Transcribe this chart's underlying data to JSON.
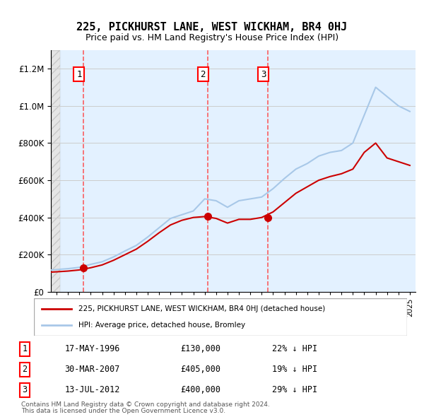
{
  "title": "225, PICKHURST LANE, WEST WICKHAM, BR4 0HJ",
  "subtitle": "Price paid vs. HM Land Registry's House Price Index (HPI)",
  "legend_line1": "225, PICKHURST LANE, WEST WICKHAM, BR4 0HJ (detached house)",
  "legend_line2": "HPI: Average price, detached house, Bromley",
  "footer1": "Contains HM Land Registry data © Crown copyright and database right 2024.",
  "footer2": "This data is licensed under the Open Government Licence v3.0.",
  "transactions": [
    {
      "id": 1,
      "date": "17-MAY-1996",
      "price": 130000,
      "hpi_note": "22% ↓ HPI",
      "year": 1996.38
    },
    {
      "id": 2,
      "date": "30-MAR-2007",
      "price": 405000,
      "hpi_note": "19% ↓ HPI",
      "year": 2007.25
    },
    {
      "id": 3,
      "date": "13-JUL-2012",
      "price": 400000,
      "hpi_note": "29% ↓ HPI",
      "year": 2012.54
    }
  ],
  "hpi_color": "#a8c8e8",
  "price_color": "#cc0000",
  "dashed_color": "#ff4444",
  "bg_hatch_color": "#d8d8e8",
  "bg_main_color": "#ddeeff",
  "ylim": [
    0,
    1300000
  ],
  "xlim_start": 1993.5,
  "xlim_end": 2025.5,
  "hpi_data": {
    "years": [
      1993,
      1994,
      1995,
      1996,
      1997,
      1998,
      1999,
      2000,
      2001,
      2002,
      2003,
      2004,
      2005,
      2006,
      2007,
      2008,
      2009,
      2010,
      2011,
      2012,
      2013,
      2014,
      2015,
      2016,
      2017,
      2018,
      2019,
      2020,
      2021,
      2022,
      2023,
      2024,
      2025
    ],
    "values": [
      115000,
      120000,
      125000,
      132000,
      148000,
      162000,
      188000,
      220000,
      250000,
      295000,
      345000,
      395000,
      415000,
      435000,
      500000,
      490000,
      455000,
      490000,
      500000,
      510000,
      555000,
      610000,
      660000,
      690000,
      730000,
      750000,
      760000,
      800000,
      950000,
      1100000,
      1050000,
      1000000,
      970000
    ]
  },
  "price_data": {
    "years": [
      1993,
      1994,
      1995,
      1996,
      1997,
      1998,
      1999,
      2000,
      2001,
      2002,
      2003,
      2004,
      2005,
      2006,
      2007,
      2008,
      2009,
      2010,
      2011,
      2012,
      2013,
      2014,
      2015,
      2016,
      2017,
      2018,
      2019,
      2020,
      2021,
      2022,
      2023,
      2024,
      2025
    ],
    "values": [
      105000,
      108000,
      112000,
      118000,
      130000,
      145000,
      170000,
      200000,
      230000,
      272000,
      318000,
      360000,
      385000,
      400000,
      405000,
      395000,
      370000,
      390000,
      390000,
      400000,
      430000,
      480000,
      530000,
      565000,
      600000,
      620000,
      635000,
      660000,
      750000,
      800000,
      720000,
      700000,
      680000
    ]
  }
}
